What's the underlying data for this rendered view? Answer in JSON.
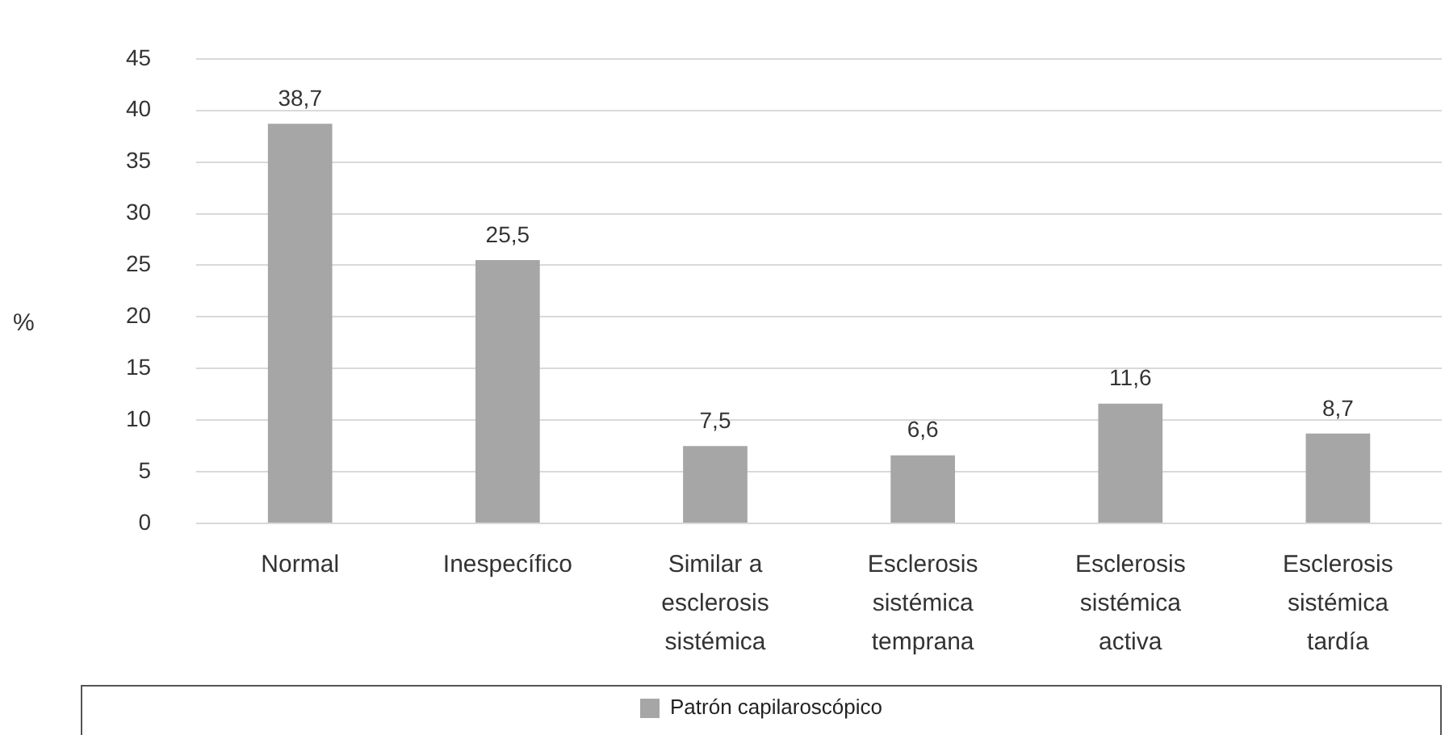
{
  "chart_data": {
    "type": "bar",
    "ylabel": "%",
    "categories": [
      "Normal",
      "Inespecífico",
      "Similar a esclerosis sistémica",
      "Esclerosis sistémica temprana",
      "Esclerosis sistémica activa",
      "Esclerosis sistémica tardía"
    ],
    "series": [
      {
        "name": "Patrón capilaroscópico",
        "color": "#a6a6a6",
        "values": [
          38.7,
          25.5,
          7.5,
          6.6,
          11.6,
          8.7
        ],
        "value_labels": [
          "38,7",
          "25,5",
          "7,5",
          "6,6",
          "11,6",
          "8,7"
        ]
      }
    ],
    "ylim": [
      0,
      45
    ],
    "yticks": [
      0,
      5,
      10,
      15,
      20,
      25,
      30,
      35,
      40,
      45
    ],
    "grid": "y",
    "legend": "bottom"
  }
}
